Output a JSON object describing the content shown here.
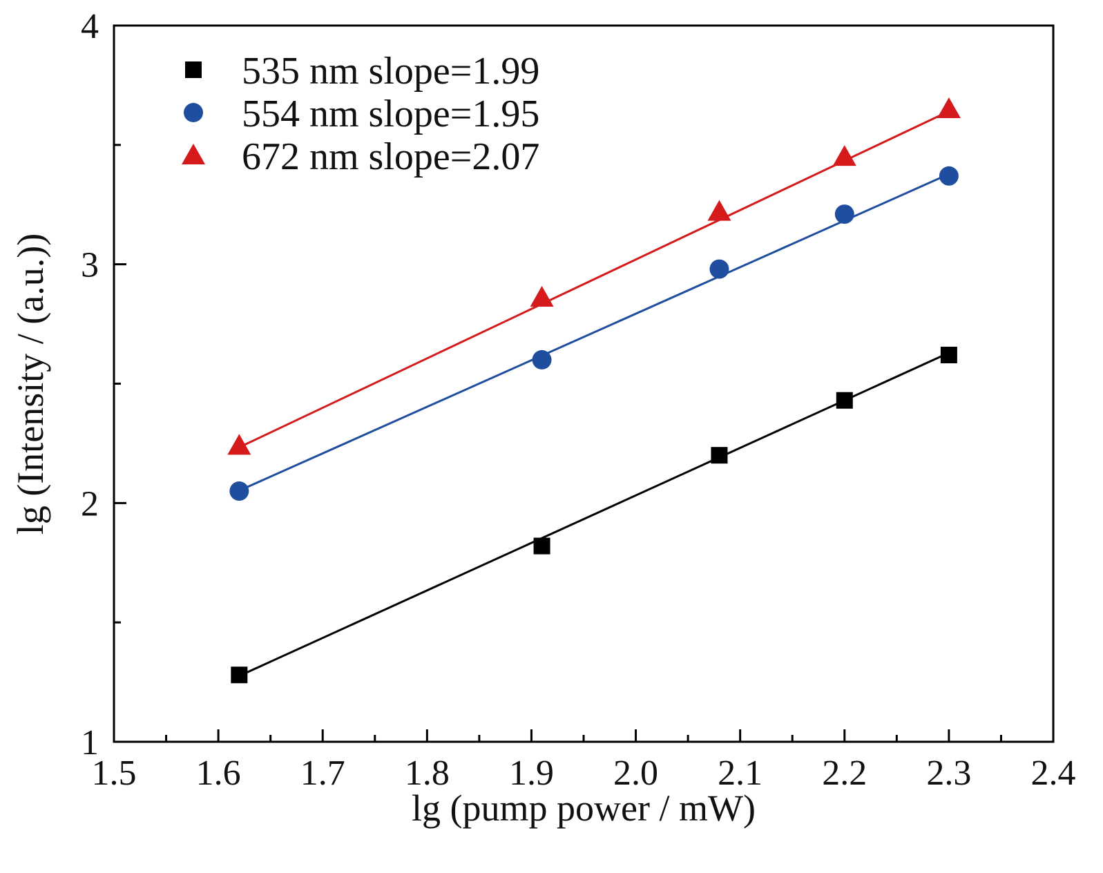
{
  "chart_data": {
    "type": "scatter",
    "xlabel": "lg (pump power / mW)",
    "ylabel": "lg (Intensity / (a.u.))",
    "xlim": [
      1.5,
      2.4
    ],
    "ylim": [
      1,
      4
    ],
    "x_ticks": [
      "1.5",
      "1.6",
      "1.7",
      "1.8",
      "1.9",
      "2.0",
      "2.1",
      "2.2",
      "2.3",
      "2.4"
    ],
    "y_ticks": [
      "1",
      "2",
      "3",
      "4"
    ],
    "legend_placement": "top-left",
    "grid": false,
    "x": [
      1.62,
      1.91,
      2.08,
      2.2,
      2.3
    ],
    "series": [
      {
        "name": "535 nm slope=1.99",
        "marker": "square",
        "color": "#000000",
        "values": [
          1.28,
          1.82,
          2.2,
          2.43,
          2.62
        ],
        "fit": {
          "slope": 1.99,
          "intercept": -1.948
        }
      },
      {
        "name": "554 nm slope=1.95",
        "marker": "circle",
        "color": "#1f4e9e",
        "values": [
          2.05,
          2.6,
          2.98,
          3.21,
          3.37
        ],
        "fit": {
          "slope": 1.95,
          "intercept": -1.107
        }
      },
      {
        "name": "672 nm slope=2.07",
        "marker": "triangle",
        "color": "#d41a1a",
        "values": [
          2.24,
          2.86,
          3.22,
          3.45,
          3.65
        ],
        "fit": {
          "slope": 2.07,
          "intercept": -1.12
        }
      }
    ]
  }
}
